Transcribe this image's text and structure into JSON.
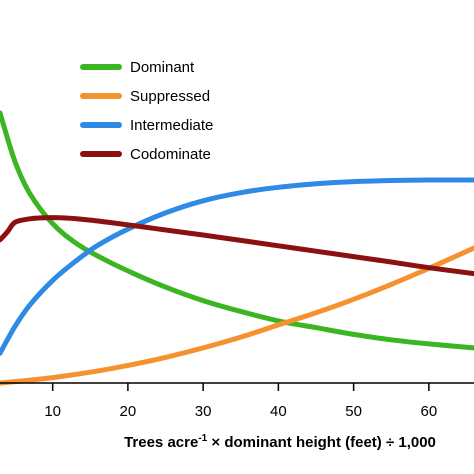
{
  "chart_data": {
    "type": "line",
    "title": "",
    "xlabel": {
      "pre": "Trees acre",
      "sup": "-1",
      "post": " × dominant height (feet) ÷ 1,000"
    },
    "ylabel": "",
    "xlim": [
      3,
      66
    ],
    "ylim": [
      0,
      100
    ],
    "x_ticks": [
      10,
      20,
      30,
      40,
      50,
      60
    ],
    "grid": false,
    "legend_position": "top-left",
    "series": [
      {
        "name": "Dominant",
        "color": "#3bb521",
        "x": [
          3,
          5,
          7,
          10,
          13,
          16,
          20,
          25,
          30,
          35,
          40,
          45,
          50,
          55,
          60,
          66
        ],
        "y": [
          100,
          82,
          70,
          59,
          52,
          47,
          41.5,
          35.5,
          30.5,
          26.5,
          23,
          20.5,
          18,
          16,
          14.5,
          13
        ]
      },
      {
        "name": "Suppressed",
        "color": "#f5922f",
        "x": [
          3,
          5,
          10,
          15,
          20,
          25,
          30,
          35,
          40,
          45,
          50,
          55,
          60,
          66
        ],
        "y": [
          0,
          0.5,
          2,
          4,
          6.5,
          9.5,
          13,
          17,
          21.5,
          26,
          31,
          36.5,
          42.5,
          50
        ]
      },
      {
        "name": "Intermediate",
        "color": "#2f8ae6",
        "x": [
          3,
          5,
          7,
          10,
          13,
          16,
          20,
          25,
          30,
          35,
          40,
          45,
          50,
          55,
          60,
          66
        ],
        "y": [
          11,
          21,
          29,
          38,
          45,
          51,
          57,
          63,
          67.5,
          70.5,
          72.5,
          73.8,
          74.6,
          75,
          75.2,
          75.2
        ]
      },
      {
        "name": "Codominate",
        "color": "#8b1111",
        "x": [
          3,
          4,
          5,
          7,
          9,
          11,
          14,
          18,
          22,
          26,
          30,
          35,
          40,
          45,
          50,
          55,
          60,
          66
        ],
        "y": [
          53,
          56,
          59.5,
          60.8,
          61.2,
          61.2,
          60.6,
          59.3,
          57.8,
          56.3,
          54.8,
          52.8,
          50.8,
          48.8,
          46.8,
          44.8,
          42.7,
          40.5
        ]
      }
    ]
  }
}
